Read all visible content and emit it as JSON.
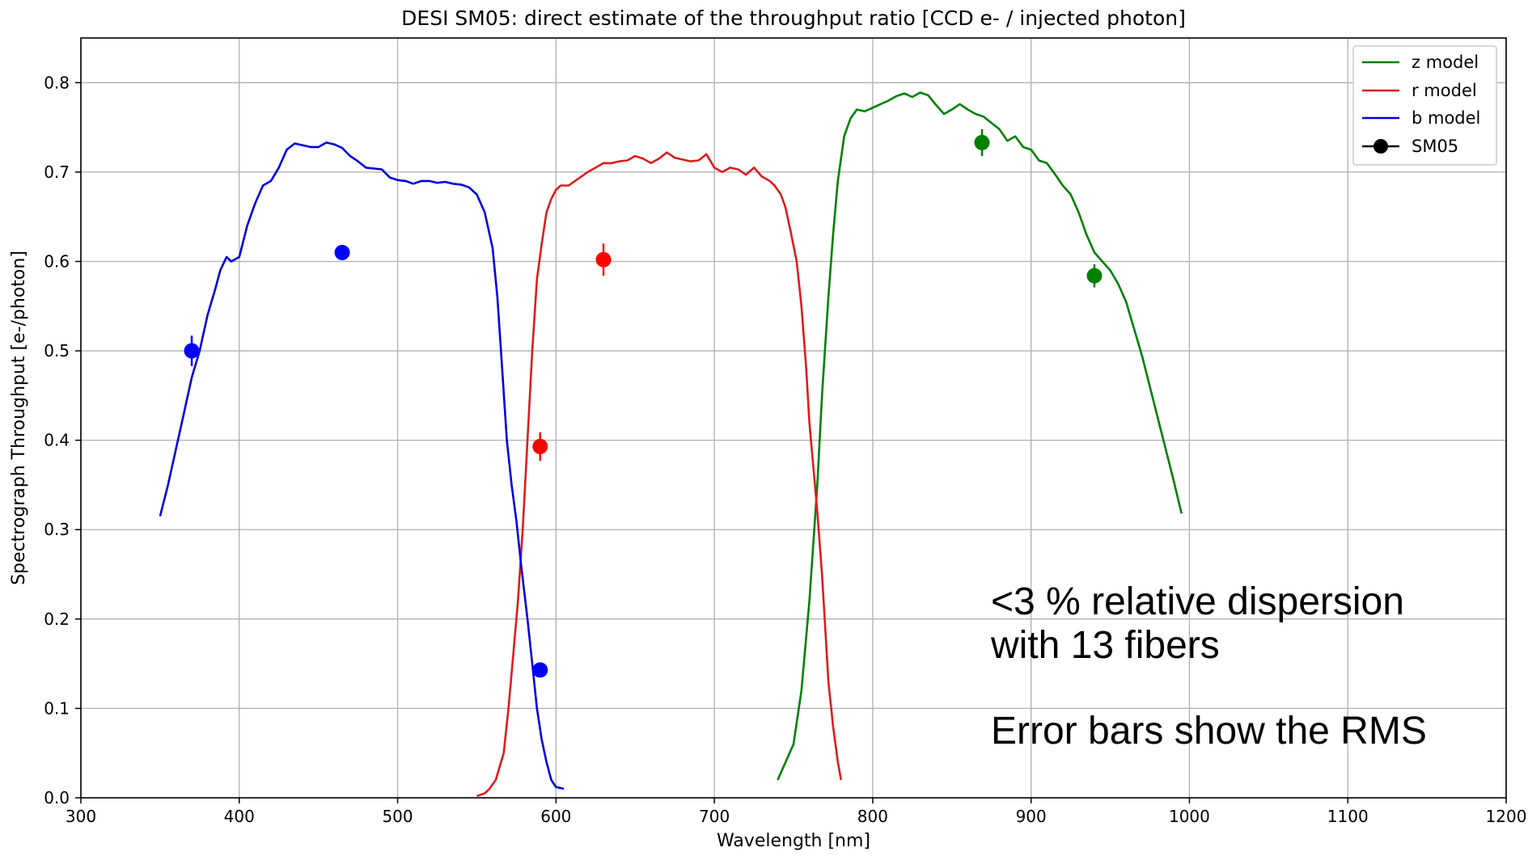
{
  "chart_data": {
    "type": "line",
    "title": "DESI SM05: direct estimate of the throughput ratio [CCD e- / injected photon]",
    "xlabel": "Wavelength [nm]",
    "ylabel": "Spectrograph Throughput [e-/photon]",
    "xlim": [
      300,
      1200
    ],
    "ylim": [
      0,
      0.85
    ],
    "xticks": [
      300,
      400,
      500,
      600,
      700,
      800,
      900,
      1000,
      1100,
      1200
    ],
    "yticks": [
      0.0,
      0.1,
      0.2,
      0.3,
      0.4,
      0.5,
      0.6,
      0.7,
      0.8
    ],
    "grid": true,
    "legend_position": "top-right",
    "series": [
      {
        "name": "z model",
        "color": "#008000",
        "points": [
          [
            740,
            0.02
          ],
          [
            745,
            0.04
          ],
          [
            750,
            0.06
          ],
          [
            755,
            0.12
          ],
          [
            760,
            0.22
          ],
          [
            765,
            0.35
          ],
          [
            768,
            0.45
          ],
          [
            772,
            0.56
          ],
          [
            775,
            0.63
          ],
          [
            778,
            0.69
          ],
          [
            782,
            0.74
          ],
          [
            786,
            0.76
          ],
          [
            790,
            0.77
          ],
          [
            795,
            0.768
          ],
          [
            800,
            0.772
          ],
          [
            805,
            0.776
          ],
          [
            810,
            0.78
          ],
          [
            815,
            0.785
          ],
          [
            820,
            0.788
          ],
          [
            825,
            0.784
          ],
          [
            830,
            0.789
          ],
          [
            835,
            0.786
          ],
          [
            840,
            0.775
          ],
          [
            845,
            0.765
          ],
          [
            850,
            0.77
          ],
          [
            855,
            0.776
          ],
          [
            860,
            0.77
          ],
          [
            865,
            0.765
          ],
          [
            870,
            0.762
          ],
          [
            875,
            0.755
          ],
          [
            880,
            0.748
          ],
          [
            885,
            0.735
          ],
          [
            890,
            0.74
          ],
          [
            895,
            0.728
          ],
          [
            900,
            0.725
          ],
          [
            905,
            0.713
          ],
          [
            910,
            0.71
          ],
          [
            915,
            0.698
          ],
          [
            920,
            0.685
          ],
          [
            925,
            0.675
          ],
          [
            930,
            0.655
          ],
          [
            935,
            0.63
          ],
          [
            940,
            0.61
          ],
          [
            945,
            0.6
          ],
          [
            950,
            0.59
          ],
          [
            955,
            0.575
          ],
          [
            960,
            0.555
          ],
          [
            965,
            0.525
          ],
          [
            970,
            0.495
          ],
          [
            975,
            0.46
          ],
          [
            980,
            0.425
          ],
          [
            985,
            0.39
          ],
          [
            990,
            0.355
          ],
          [
            995,
            0.318
          ]
        ]
      },
      {
        "name": "r model",
        "color": "#dd1c1c",
        "points": [
          [
            550,
            0.002
          ],
          [
            555,
            0.005
          ],
          [
            558,
            0.01
          ],
          [
            562,
            0.02
          ],
          [
            567,
            0.05
          ],
          [
            570,
            0.1
          ],
          [
            573,
            0.16
          ],
          [
            576,
            0.22
          ],
          [
            579,
            0.3
          ],
          [
            582,
            0.4
          ],
          [
            585,
            0.5
          ],
          [
            588,
            0.58
          ],
          [
            591,
            0.62
          ],
          [
            594,
            0.655
          ],
          [
            597,
            0.67
          ],
          [
            600,
            0.68
          ],
          [
            603,
            0.685
          ],
          [
            608,
            0.685
          ],
          [
            612,
            0.69
          ],
          [
            616,
            0.695
          ],
          [
            620,
            0.7
          ],
          [
            625,
            0.705
          ],
          [
            630,
            0.71
          ],
          [
            635,
            0.71
          ],
          [
            640,
            0.712
          ],
          [
            645,
            0.713
          ],
          [
            650,
            0.718
          ],
          [
            655,
            0.715
          ],
          [
            660,
            0.71
          ],
          [
            665,
            0.715
          ],
          [
            670,
            0.722
          ],
          [
            675,
            0.716
          ],
          [
            680,
            0.714
          ],
          [
            685,
            0.712
          ],
          [
            690,
            0.713
          ],
          [
            695,
            0.72
          ],
          [
            700,
            0.705
          ],
          [
            705,
            0.7
          ],
          [
            710,
            0.705
          ],
          [
            715,
            0.703
          ],
          [
            720,
            0.697
          ],
          [
            725,
            0.705
          ],
          [
            730,
            0.695
          ],
          [
            735,
            0.69
          ],
          [
            738,
            0.685
          ],
          [
            742,
            0.675
          ],
          [
            745,
            0.66
          ],
          [
            748,
            0.635
          ],
          [
            752,
            0.6
          ],
          [
            755,
            0.55
          ],
          [
            758,
            0.48
          ],
          [
            760,
            0.42
          ],
          [
            763,
            0.36
          ],
          [
            765,
            0.32
          ],
          [
            768,
            0.25
          ],
          [
            770,
            0.19
          ],
          [
            772,
            0.13
          ],
          [
            775,
            0.08
          ],
          [
            778,
            0.04
          ],
          [
            780,
            0.02
          ]
        ]
      },
      {
        "name": "b model",
        "color": "#0000dd",
        "points": [
          [
            350,
            0.315
          ],
          [
            355,
            0.35
          ],
          [
            360,
            0.39
          ],
          [
            365,
            0.43
          ],
          [
            370,
            0.47
          ],
          [
            375,
            0.5
          ],
          [
            380,
            0.54
          ],
          [
            385,
            0.57
          ],
          [
            388,
            0.59
          ],
          [
            392,
            0.605
          ],
          [
            395,
            0.6
          ],
          [
            400,
            0.605
          ],
          [
            405,
            0.64
          ],
          [
            410,
            0.665
          ],
          [
            415,
            0.685
          ],
          [
            420,
            0.69
          ],
          [
            425,
            0.705
          ],
          [
            430,
            0.725
          ],
          [
            435,
            0.732
          ],
          [
            440,
            0.73
          ],
          [
            445,
            0.728
          ],
          [
            450,
            0.728
          ],
          [
            455,
            0.733
          ],
          [
            460,
            0.731
          ],
          [
            465,
            0.727
          ],
          [
            470,
            0.718
          ],
          [
            475,
            0.712
          ],
          [
            480,
            0.705
          ],
          [
            485,
            0.704
          ],
          [
            490,
            0.703
          ],
          [
            495,
            0.694
          ],
          [
            500,
            0.691
          ],
          [
            505,
            0.69
          ],
          [
            510,
            0.687
          ],
          [
            515,
            0.69
          ],
          [
            520,
            0.69
          ],
          [
            525,
            0.688
          ],
          [
            530,
            0.689
          ],
          [
            535,
            0.687
          ],
          [
            540,
            0.686
          ],
          [
            545,
            0.683
          ],
          [
            550,
            0.675
          ],
          [
            555,
            0.655
          ],
          [
            560,
            0.615
          ],
          [
            563,
            0.56
          ],
          [
            566,
            0.48
          ],
          [
            569,
            0.4
          ],
          [
            572,
            0.35
          ],
          [
            575,
            0.31
          ],
          [
            578,
            0.26
          ],
          [
            582,
            0.2
          ],
          [
            585,
            0.15
          ],
          [
            588,
            0.1
          ],
          [
            591,
            0.065
          ],
          [
            594,
            0.04
          ],
          [
            597,
            0.02
          ],
          [
            600,
            0.012
          ],
          [
            605,
            0.01
          ]
        ]
      },
      {
        "name": "SM05",
        "type": "errorbar",
        "color": "#000000",
        "points": [
          {
            "x": 370,
            "y": 0.5,
            "err": 0.017,
            "color": "#0000ff"
          },
          {
            "x": 465,
            "y": 0.61,
            "err": 0.0,
            "color": "#0000ff"
          },
          {
            "x": 590,
            "y": 0.143,
            "err": 0.0,
            "color": "#0000ff"
          },
          {
            "x": 590,
            "y": 0.393,
            "err": 0.016,
            "color": "#ff0000"
          },
          {
            "x": 630,
            "y": 0.602,
            "err": 0.018,
            "color": "#ff0000"
          },
          {
            "x": 869,
            "y": 0.733,
            "err": 0.015,
            "color": "#008000"
          },
          {
            "x": 940,
            "y": 0.584,
            "err": 0.013,
            "color": "#008000"
          }
        ]
      }
    ],
    "annotations": [
      "<3 % relative dispersion",
      "with 13 fibers",
      "Error bars show the RMS"
    ]
  }
}
